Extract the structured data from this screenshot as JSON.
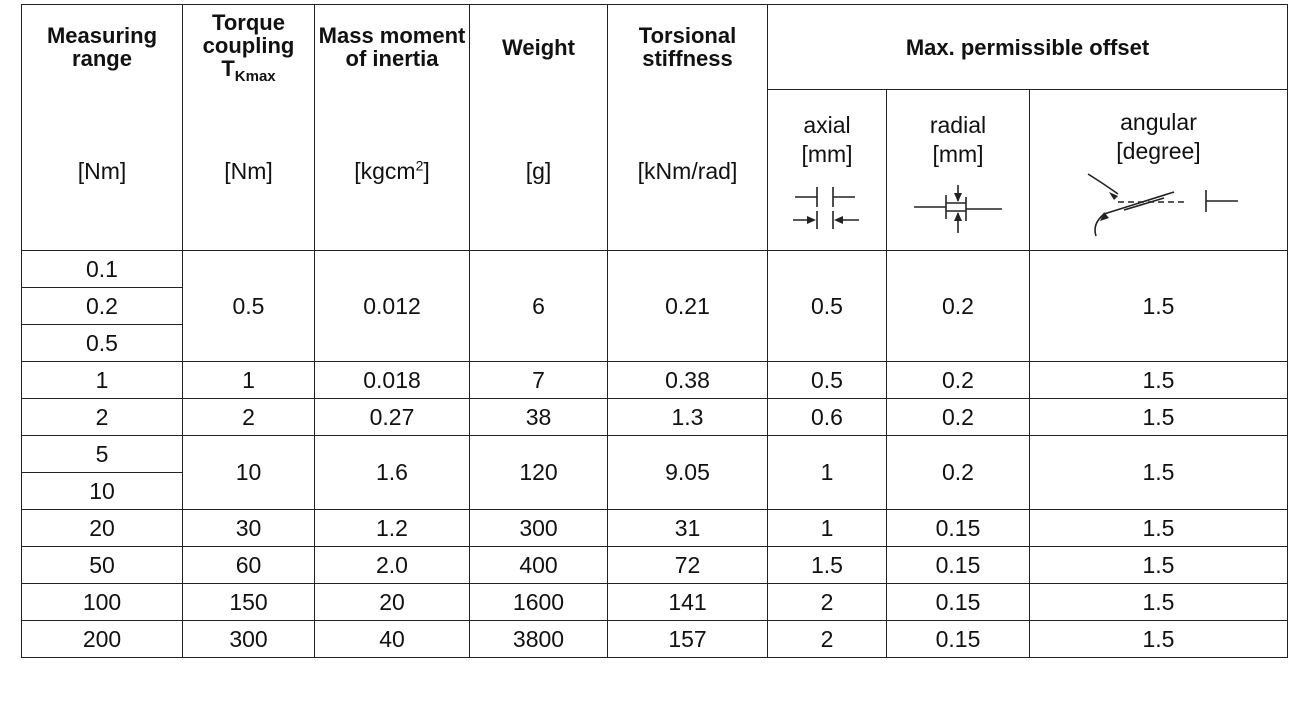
{
  "header": {
    "measuring_range": "Measuring range",
    "torque_coupling": "Torque coupling",
    "tkmax_T": "T",
    "tkmax_sub": "Kmax",
    "mass_moment": "Mass moment of inertia",
    "weight": "Weight",
    "torsional_stiffness": "Torsional stiffness",
    "max_offset": "Max. permissible offset",
    "axial_label": "axial",
    "radial_label": "radial",
    "angular_label": "angular"
  },
  "units": {
    "measuring_range": "[Nm]",
    "torque_coupling": "[Nm]",
    "mass_moment_base": "[kgcm",
    "mass_moment_sup": "2",
    "mass_moment_close": "]",
    "weight": "[g]",
    "torsional_stiffness": "[kNm/rad]",
    "axial": "[mm]",
    "radial": "[mm]",
    "angular": "[degree]"
  },
  "icons": [
    "axial-offset-icon",
    "radial-offset-icon",
    "angular-offset-icon"
  ],
  "rows": [
    {
      "range": [
        "0.1",
        "0.2",
        "0.5"
      ],
      "tkmax": "0.5",
      "inertia": "0.012",
      "weight": "6",
      "stiffness": "0.21",
      "axial": "0.5",
      "radial": "0.2",
      "angular": "1.5"
    },
    {
      "range": [
        "1"
      ],
      "tkmax": "1",
      "inertia": "0.018",
      "weight": "7",
      "stiffness": "0.38",
      "axial": "0.5",
      "radial": "0.2",
      "angular": "1.5"
    },
    {
      "range": [
        "2"
      ],
      "tkmax": "2",
      "inertia": "0.27",
      "weight": "38",
      "stiffness": "1.3",
      "axial": "0.6",
      "radial": "0.2",
      "angular": "1.5"
    },
    {
      "range": [
        "5",
        "10"
      ],
      "tkmax": "10",
      "inertia": "1.6",
      "weight": "120",
      "stiffness": "9.05",
      "axial": "1",
      "radial": "0.2",
      "angular": "1.5"
    },
    {
      "range": [
        "20"
      ],
      "tkmax": "30",
      "inertia": "1.2",
      "weight": "300",
      "stiffness": "31",
      "axial": "1",
      "radial": "0.15",
      "angular": "1.5"
    },
    {
      "range": [
        "50"
      ],
      "tkmax": "60",
      "inertia": "2.0",
      "weight": "400",
      "stiffness": "72",
      "axial": "1.5",
      "radial": "0.15",
      "angular": "1.5"
    },
    {
      "range": [
        "100"
      ],
      "tkmax": "150",
      "inertia": "20",
      "weight": "1600",
      "stiffness": "141",
      "axial": "2",
      "radial": "0.15",
      "angular": "1.5"
    },
    {
      "range": [
        "200"
      ],
      "tkmax": "300",
      "inertia": "40",
      "weight": "3800",
      "stiffness": "157",
      "axial": "2",
      "radial": "0.15",
      "angular": "1.5"
    }
  ]
}
